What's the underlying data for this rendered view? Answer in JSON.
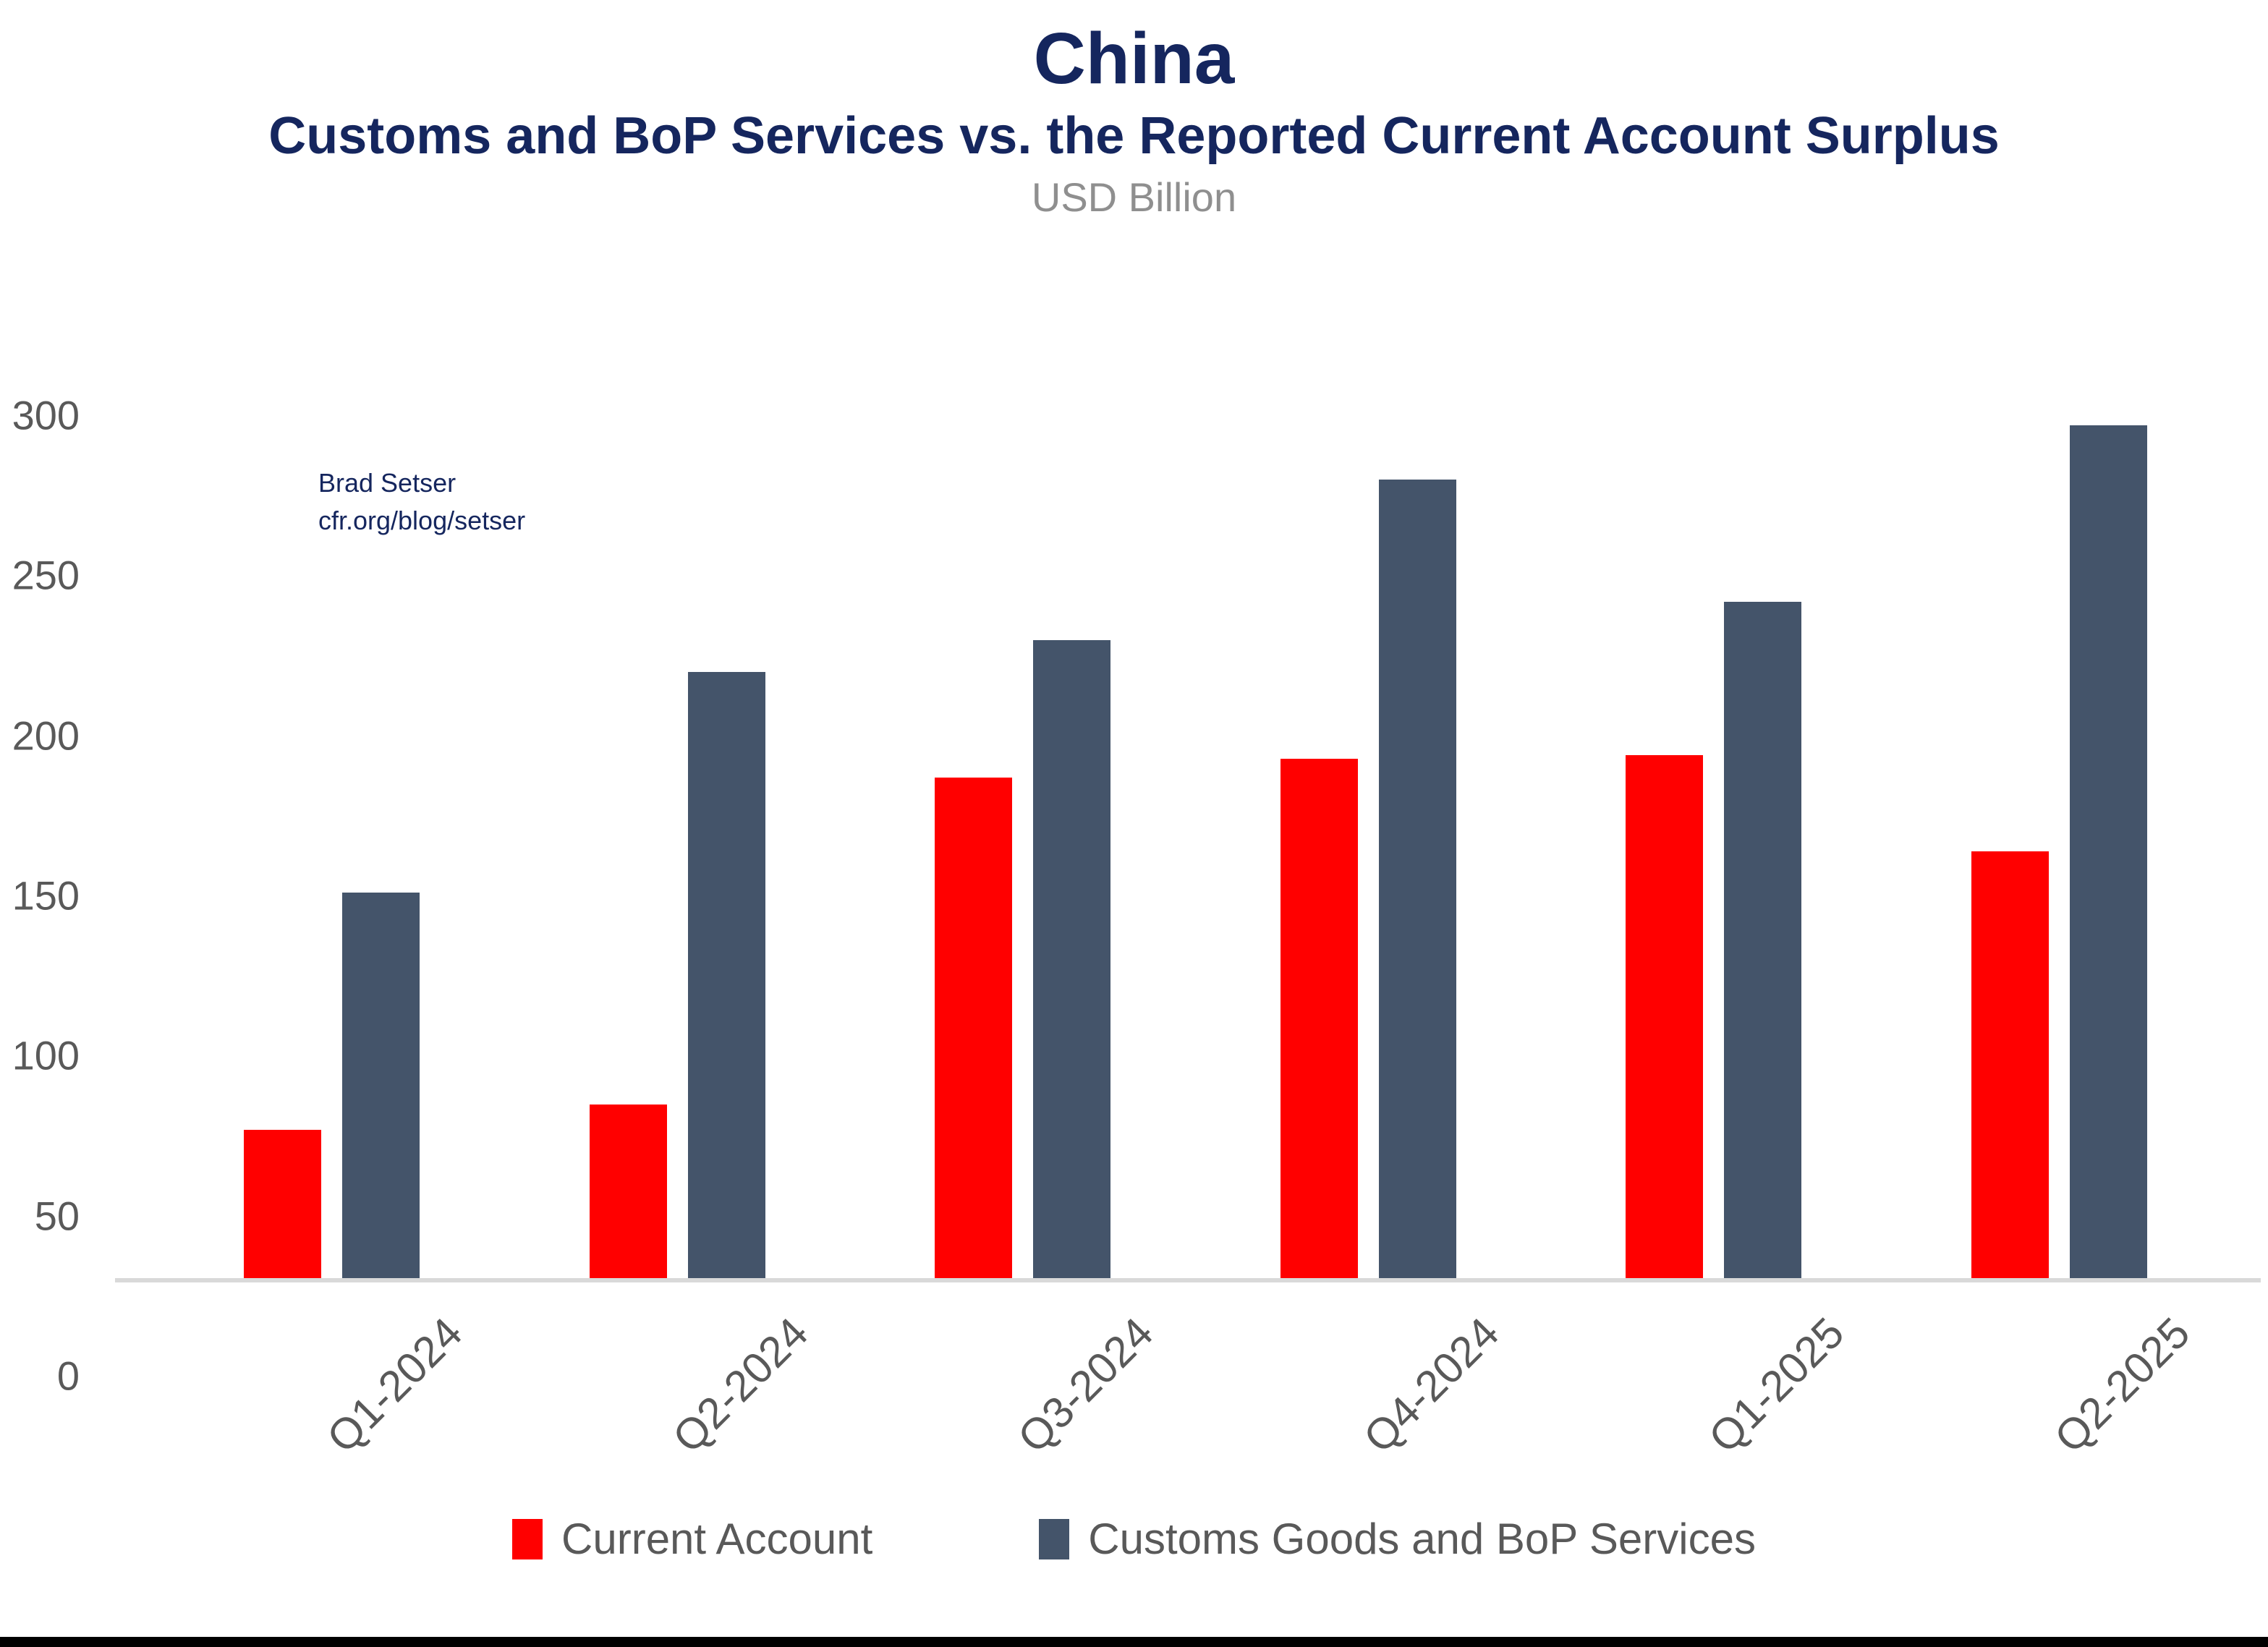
{
  "header": {
    "title": "China",
    "subtitle": "Customs and BoP Services vs. the Reported Current Account Surplus",
    "units": "USD Billion"
  },
  "annotation": {
    "line1": "Brad Setser",
    "line2": "cfr.org/blog/setser"
  },
  "colors": {
    "navy": "#15265E",
    "red": "#FF0000",
    "slate": "#44546A",
    "axis_gray": "#D9D9D9",
    "tick_gray": "#595959",
    "units_gray": "#8F8F8F",
    "bottom_bar": "#000000"
  },
  "chart_data": {
    "type": "bar",
    "title": "China",
    "subtitle": "Customs and BoP Services vs. the Reported Current Account Surplus",
    "ylabel": "USD Billion",
    "ylim": [
      0,
      300
    ],
    "yticks": [
      0,
      50,
      100,
      150,
      200,
      250,
      300
    ],
    "grid": false,
    "legend_position": "bottom",
    "categories": [
      "Q1-2024",
      "Q2-2024",
      "Q3-2024",
      "Q4-2024",
      "Q1-2025",
      "Q2-2025"
    ],
    "series": [
      {
        "name": "Current Account",
        "color": "#FF0000",
        "values": [
          47,
          55,
          157,
          163,
          164,
          134
        ]
      },
      {
        "name": "Customs Goods and BoP Services",
        "color": "#44546A",
        "values": [
          121,
          190,
          200,
          250,
          212,
          267
        ]
      }
    ]
  }
}
